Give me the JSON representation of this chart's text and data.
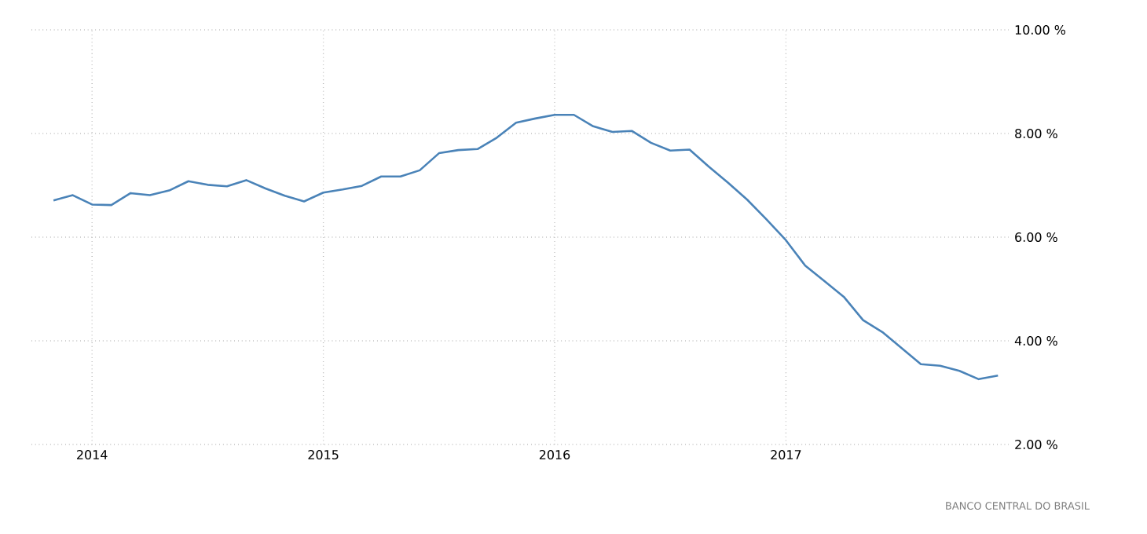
{
  "chart_data": {
    "type": "line",
    "x": [
      "2013-11",
      "2013-12",
      "2014-01",
      "2014-02",
      "2014-03",
      "2014-04",
      "2014-05",
      "2014-06",
      "2014-07",
      "2014-08",
      "2014-09",
      "2014-10",
      "2014-11",
      "2014-12",
      "2015-01",
      "2015-02",
      "2015-03",
      "2015-04",
      "2015-05",
      "2015-06",
      "2015-07",
      "2015-08",
      "2015-09",
      "2015-10",
      "2015-11",
      "2015-12",
      "2016-01",
      "2016-02",
      "2016-03",
      "2016-04",
      "2016-05",
      "2016-06",
      "2016-07",
      "2016-08",
      "2016-09",
      "2016-10",
      "2016-11",
      "2016-12",
      "2017-01",
      "2017-02",
      "2017-03",
      "2017-04",
      "2017-05",
      "2017-06",
      "2017-07",
      "2017-08",
      "2017-09",
      "2017-10",
      "2017-11",
      "2017-12"
    ],
    "series": [
      {
        "color": "#4a83b8",
        "values": [
          6.71,
          6.81,
          6.63,
          6.62,
          6.85,
          6.81,
          6.9,
          7.08,
          7.01,
          6.98,
          7.1,
          6.94,
          6.8,
          6.69,
          6.86,
          6.92,
          6.99,
          7.17,
          7.17,
          7.29,
          7.62,
          7.68,
          7.7,
          7.92,
          8.21,
          8.29,
          8.36,
          8.36,
          8.14,
          8.03,
          8.05,
          7.82,
          7.67,
          7.69,
          7.36,
          7.05,
          6.72,
          6.34,
          5.94,
          5.45,
          5.15,
          4.85,
          4.4,
          4.17,
          3.86,
          3.55,
          3.52,
          3.42,
          3.26,
          3.33
        ]
      }
    ],
    "xlim": [
      "2013-09-27",
      "2017-12-18"
    ],
    "xticks": [
      {
        "value": "2014-01",
        "label": "2014"
      },
      {
        "value": "2015-01",
        "label": "2015"
      },
      {
        "value": "2016-01",
        "label": "2016"
      },
      {
        "value": "2017-01",
        "label": "2017"
      }
    ],
    "ylim": [
      2,
      10
    ],
    "yticks": [
      {
        "value": 2,
        "label": "2.00 %"
      },
      {
        "value": 4,
        "label": "4.00 %"
      },
      {
        "value": 6,
        "label": "6.00 %"
      },
      {
        "value": 8,
        "label": "8.00 %"
      },
      {
        "value": 10,
        "label": "10.00 %"
      }
    ],
    "grid": true,
    "line_style": "solid",
    "marker": "none",
    "annotations": [
      "BANCO CENTRAL DO BRASIL"
    ]
  }
}
